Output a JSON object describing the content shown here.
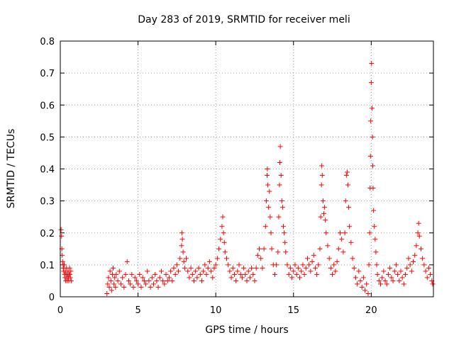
{
  "chart_data": {
    "type": "scatter",
    "title": "Day 283 of 2019, SRMTID for receiver meli",
    "xlabel": "GPS time / hours",
    "ylabel": "SRMTID / TECUs",
    "xlim": [
      0,
      24
    ],
    "ylim": [
      0,
      0.8
    ],
    "xticks": [
      0,
      5,
      10,
      15,
      20
    ],
    "xtick_labels": [
      "0",
      "5",
      "10",
      "15",
      "20"
    ],
    "yticks": [
      0,
      0.1,
      0.2,
      0.3,
      0.4,
      0.5,
      0.6,
      0.7,
      0.8
    ],
    "ytick_labels": [
      "0",
      "0.1",
      "0.2",
      "0.3",
      "0.4",
      "0.5",
      "0.6",
      "0.7",
      "0.8"
    ],
    "grid": true,
    "marker": "+",
    "marker_color": "#ff0000",
    "series": [
      {
        "name": "SRMTID",
        "points": [
          [
            0.05,
            0.21
          ],
          [
            0.08,
            0.19
          ],
          [
            0.1,
            0.15
          ],
          [
            0.12,
            0.13
          ],
          [
            0.15,
            0.11
          ],
          [
            0.18,
            0.1
          ],
          [
            0.2,
            0.09
          ],
          [
            0.22,
            0.08
          ],
          [
            0.25,
            0.1
          ],
          [
            0.28,
            0.07
          ],
          [
            0.3,
            0.06
          ],
          [
            0.32,
            0.08
          ],
          [
            0.35,
            0.05
          ],
          [
            0.38,
            0.07
          ],
          [
            0.4,
            0.09
          ],
          [
            0.42,
            0.06
          ],
          [
            0.45,
            0.05
          ],
          [
            0.48,
            0.07
          ],
          [
            0.5,
            0.08
          ],
          [
            0.52,
            0.06
          ],
          [
            0.55,
            0.05
          ],
          [
            0.58,
            0.07
          ],
          [
            0.6,
            0.09
          ],
          [
            0.62,
            0.07
          ],
          [
            0.65,
            0.06
          ],
          [
            0.68,
            0.08
          ],
          [
            0.7,
            0.05
          ],
          [
            3.0,
            0.01
          ],
          [
            3.05,
            0.04
          ],
          [
            3.1,
            0.06
          ],
          [
            3.15,
            0.03
          ],
          [
            3.2,
            0.08
          ],
          [
            3.25,
            0.05
          ],
          [
            3.3,
            0.02
          ],
          [
            3.35,
            0.07
          ],
          [
            3.4,
            0.09
          ],
          [
            3.45,
            0.04
          ],
          [
            3.5,
            0.06
          ],
          [
            3.55,
            0.03
          ],
          [
            3.6,
            0.07
          ],
          [
            3.7,
            0.05
          ],
          [
            3.8,
            0.08
          ],
          [
            3.9,
            0.04
          ],
          [
            4.0,
            0.06
          ],
          [
            4.1,
            0.03
          ],
          [
            4.2,
            0.07
          ],
          [
            4.3,
            0.11
          ],
          [
            4.4,
            0.05
          ],
          [
            4.5,
            0.04
          ],
          [
            4.6,
            0.07
          ],
          [
            4.7,
            0.03
          ],
          [
            4.8,
            0.06
          ],
          [
            4.9,
            0.05
          ],
          [
            5.0,
            0.04
          ],
          [
            5.1,
            0.07
          ],
          [
            5.2,
            0.03
          ],
          [
            5.3,
            0.06
          ],
          [
            5.4,
            0.05
          ],
          [
            5.5,
            0.04
          ],
          [
            5.6,
            0.08
          ],
          [
            5.7,
            0.05
          ],
          [
            5.8,
            0.03
          ],
          [
            5.9,
            0.06
          ],
          [
            6.0,
            0.04
          ],
          [
            6.1,
            0.07
          ],
          [
            6.2,
            0.05
          ],
          [
            6.3,
            0.03
          ],
          [
            6.4,
            0.06
          ],
          [
            6.5,
            0.08
          ],
          [
            6.6,
            0.05
          ],
          [
            6.7,
            0.04
          ],
          [
            6.8,
            0.07
          ],
          [
            6.9,
            0.05
          ],
          [
            7.0,
            0.06
          ],
          [
            7.1,
            0.08
          ],
          [
            7.2,
            0.05
          ],
          [
            7.3,
            0.09
          ],
          [
            7.4,
            0.07
          ],
          [
            7.5,
            0.1
          ],
          [
            7.6,
            0.08
          ],
          [
            7.7,
            0.12
          ],
          [
            7.8,
            0.16
          ],
          [
            7.82,
            0.2
          ],
          [
            7.85,
            0.18
          ],
          [
            7.9,
            0.14
          ],
          [
            7.95,
            0.11
          ],
          [
            8.0,
            0.09
          ],
          [
            8.1,
            0.12
          ],
          [
            8.2,
            0.08
          ],
          [
            8.3,
            0.06
          ],
          [
            8.4,
            0.09
          ],
          [
            8.5,
            0.07
          ],
          [
            8.6,
            0.05
          ],
          [
            8.7,
            0.08
          ],
          [
            8.8,
            0.06
          ],
          [
            8.9,
            0.09
          ],
          [
            9.0,
            0.07
          ],
          [
            9.1,
            0.05
          ],
          [
            9.2,
            0.08
          ],
          [
            9.3,
            0.1
          ],
          [
            9.4,
            0.07
          ],
          [
            9.5,
            0.09
          ],
          [
            9.6,
            0.11
          ],
          [
            9.7,
            0.08
          ],
          [
            9.8,
            0.06
          ],
          [
            9.9,
            0.09
          ],
          [
            10.0,
            0.1
          ],
          [
            10.1,
            0.12
          ],
          [
            10.2,
            0.15
          ],
          [
            10.3,
            0.18
          ],
          [
            10.4,
            0.22
          ],
          [
            10.45,
            0.25
          ],
          [
            10.5,
            0.2
          ],
          [
            10.55,
            0.17
          ],
          [
            10.6,
            0.14
          ],
          [
            10.7,
            0.12
          ],
          [
            10.8,
            0.1
          ],
          [
            10.9,
            0.08
          ],
          [
            11.0,
            0.06
          ],
          [
            11.1,
            0.09
          ],
          [
            11.2,
            0.07
          ],
          [
            11.3,
            0.05
          ],
          [
            11.4,
            0.08
          ],
          [
            11.5,
            0.1
          ],
          [
            11.6,
            0.07
          ],
          [
            11.7,
            0.06
          ],
          [
            11.8,
            0.09
          ],
          [
            11.9,
            0.07
          ],
          [
            12.0,
            0.05
          ],
          [
            12.1,
            0.08
          ],
          [
            12.2,
            0.06
          ],
          [
            12.3,
            0.09
          ],
          [
            12.4,
            0.07
          ],
          [
            12.5,
            0.05
          ],
          [
            12.6,
            0.09
          ],
          [
            12.7,
            0.13
          ],
          [
            12.8,
            0.15
          ],
          [
            12.9,
            0.12
          ],
          [
            13.0,
            0.09
          ],
          [
            13.1,
            0.15
          ],
          [
            13.2,
            0.22
          ],
          [
            13.25,
            0.3
          ],
          [
            13.3,
            0.38
          ],
          [
            13.32,
            0.4
          ],
          [
            13.35,
            0.35
          ],
          [
            13.4,
            0.28
          ],
          [
            13.45,
            0.33
          ],
          [
            13.5,
            0.25
          ],
          [
            13.55,
            0.2
          ],
          [
            13.6,
            0.15
          ],
          [
            13.7,
            0.1
          ],
          [
            13.8,
            0.07
          ],
          [
            13.9,
            0.1
          ],
          [
            14.0,
            0.14
          ],
          [
            14.05,
            0.25
          ],
          [
            14.1,
            0.35
          ],
          [
            14.12,
            0.42
          ],
          [
            14.15,
            0.47
          ],
          [
            14.2,
            0.38
          ],
          [
            14.25,
            0.3
          ],
          [
            14.3,
            0.28
          ],
          [
            14.35,
            0.22
          ],
          [
            14.4,
            0.2
          ],
          [
            14.45,
            0.17
          ],
          [
            14.5,
            0.14
          ],
          [
            14.6,
            0.1
          ],
          [
            14.7,
            0.07
          ],
          [
            14.8,
            0.09
          ],
          [
            14.9,
            0.06
          ],
          [
            15.0,
            0.08
          ],
          [
            15.1,
            0.1
          ],
          [
            15.2,
            0.07
          ],
          [
            15.3,
            0.09
          ],
          [
            15.4,
            0.06
          ],
          [
            15.5,
            0.08
          ],
          [
            15.6,
            0.1
          ],
          [
            15.7,
            0.07
          ],
          [
            15.8,
            0.09
          ],
          [
            15.9,
            0.12
          ],
          [
            16.0,
            0.1
          ],
          [
            16.1,
            0.08
          ],
          [
            16.2,
            0.11
          ],
          [
            16.3,
            0.13
          ],
          [
            16.4,
            0.09
          ],
          [
            16.5,
            0.07
          ],
          [
            16.6,
            0.1
          ],
          [
            16.7,
            0.15
          ],
          [
            16.75,
            0.25
          ],
          [
            16.8,
            0.35
          ],
          [
            16.82,
            0.41
          ],
          [
            16.85,
            0.38
          ],
          [
            16.9,
            0.3
          ],
          [
            16.95,
            0.26
          ],
          [
            17.0,
            0.28
          ],
          [
            17.05,
            0.24
          ],
          [
            17.1,
            0.2
          ],
          [
            17.2,
            0.16
          ],
          [
            17.3,
            0.12
          ],
          [
            17.4,
            0.09
          ],
          [
            17.5,
            0.07
          ],
          [
            17.6,
            0.1
          ],
          [
            17.7,
            0.08
          ],
          [
            17.8,
            0.11
          ],
          [
            17.9,
            0.15
          ],
          [
            18.0,
            0.2
          ],
          [
            18.1,
            0.18
          ],
          [
            18.2,
            0.14
          ],
          [
            18.3,
            0.2
          ],
          [
            18.35,
            0.3
          ],
          [
            18.4,
            0.38
          ],
          [
            18.45,
            0.39
          ],
          [
            18.5,
            0.35
          ],
          [
            18.55,
            0.28
          ],
          [
            18.6,
            0.22
          ],
          [
            18.7,
            0.17
          ],
          [
            18.8,
            0.12
          ],
          [
            18.9,
            0.09
          ],
          [
            19.0,
            0.06
          ],
          [
            19.1,
            0.04
          ],
          [
            19.2,
            0.08
          ],
          [
            19.3,
            0.05
          ],
          [
            19.4,
            0.03
          ],
          [
            19.5,
            0.06
          ],
          [
            19.6,
            0.02
          ],
          [
            19.7,
            0.04
          ],
          [
            19.8,
            0.01
          ],
          [
            19.85,
            0.1
          ],
          [
            19.9,
            0.2
          ],
          [
            19.93,
            0.34
          ],
          [
            19.95,
            0.44
          ],
          [
            19.97,
            0.55
          ],
          [
            20.0,
            0.67
          ],
          [
            20.02,
            0.73
          ],
          [
            20.05,
            0.59
          ],
          [
            20.08,
            0.5
          ],
          [
            20.1,
            0.41
          ],
          [
            20.12,
            0.34
          ],
          [
            20.15,
            0.27
          ],
          [
            20.2,
            0.22
          ],
          [
            20.25,
            0.18
          ],
          [
            20.3,
            0.14
          ],
          [
            20.35,
            0.1
          ],
          [
            20.4,
            0.07
          ],
          [
            20.5,
            0.05
          ],
          [
            20.6,
            0.04
          ],
          [
            20.7,
            0.06
          ],
          [
            20.8,
            0.08
          ],
          [
            20.9,
            0.05
          ],
          [
            21.0,
            0.04
          ],
          [
            21.1,
            0.07
          ],
          [
            21.2,
            0.09
          ],
          [
            21.3,
            0.06
          ],
          [
            21.4,
            0.05
          ],
          [
            21.5,
            0.08
          ],
          [
            21.6,
            0.1
          ],
          [
            21.7,
            0.07
          ],
          [
            21.8,
            0.05
          ],
          [
            21.9,
            0.08
          ],
          [
            22.0,
            0.06
          ],
          [
            22.1,
            0.04
          ],
          [
            22.2,
            0.07
          ],
          [
            22.3,
            0.09
          ],
          [
            22.4,
            0.12
          ],
          [
            22.5,
            0.1
          ],
          [
            22.6,
            0.08
          ],
          [
            22.7,
            0.11
          ],
          [
            22.8,
            0.13
          ],
          [
            22.9,
            0.16
          ],
          [
            23.0,
            0.2
          ],
          [
            23.05,
            0.23
          ],
          [
            23.1,
            0.19
          ],
          [
            23.2,
            0.15
          ],
          [
            23.3,
            0.12
          ],
          [
            23.4,
            0.1
          ],
          [
            23.5,
            0.08
          ],
          [
            23.6,
            0.06
          ],
          [
            23.7,
            0.09
          ],
          [
            23.8,
            0.07
          ],
          [
            23.9,
            0.05
          ],
          [
            23.95,
            0.04
          ]
        ]
      }
    ]
  }
}
